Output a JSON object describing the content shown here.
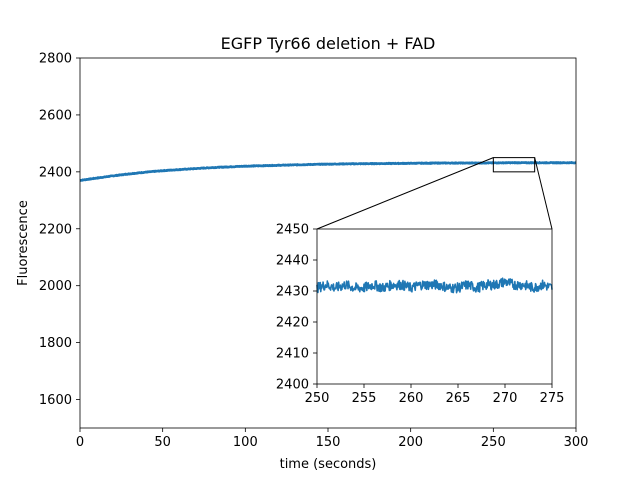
{
  "chart_data": [
    {
      "type": "line",
      "title": "EGFP Tyr66 deletion + FAD",
      "xlabel": "time (seconds)",
      "ylabel": "Fluorescence",
      "xlim": [
        0,
        300
      ],
      "ylim": [
        1500,
        2800
      ],
      "xticks": [
        "0",
        "50",
        "100",
        "150",
        "200",
        "250",
        "300"
      ],
      "yticks": [
        "1600",
        "1800",
        "2000",
        "2200",
        "2400",
        "2600",
        "2800"
      ],
      "grid": false,
      "series_color": "#1f77b4",
      "series": [
        {
          "x": [
            0,
            10,
            20,
            30,
            40,
            50,
            60,
            80,
            100,
            120,
            140,
            160,
            180,
            200,
            220,
            240,
            260,
            280,
            300
          ],
          "values": [
            2370,
            2378,
            2386,
            2393,
            2399,
            2404,
            2408,
            2415,
            2420,
            2423,
            2426,
            2428,
            2429,
            2430,
            2431,
            2431,
            2432,
            2432,
            2432
          ]
        }
      ]
    },
    {
      "type": "line",
      "role": "zoom inset",
      "xlim": [
        250,
        275
      ],
      "ylim": [
        2400,
        2450
      ],
      "xticks": [
        "250",
        "255",
        "260",
        "265",
        "270",
        "275"
      ],
      "yticks": [
        "2400",
        "2410",
        "2420",
        "2430",
        "2440",
        "2450"
      ],
      "grid": false,
      "series_color": "#1f77b4",
      "series": [
        {
          "x": [
            250,
            251,
            252,
            253,
            254,
            255,
            256,
            257,
            258,
            259,
            260,
            261,
            262,
            263,
            264,
            265,
            266,
            267,
            268,
            269,
            270,
            271,
            272,
            273,
            274,
            275
          ],
          "values": [
            2431,
            2432,
            2431,
            2432,
            2431,
            2431,
            2432,
            2431,
            2432,
            2432,
            2431,
            2432,
            2432,
            2432,
            2431,
            2431,
            2432,
            2431,
            2432,
            2432,
            2433,
            2432,
            2432,
            2431,
            2432,
            2431
          ]
        }
      ]
    }
  ]
}
